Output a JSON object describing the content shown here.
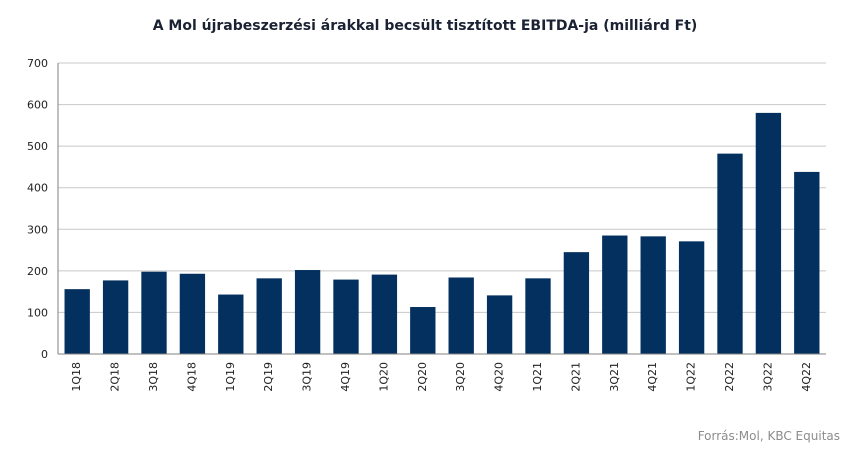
{
  "chart_data": {
    "type": "bar",
    "title": "A Mol újrabeszerzési árakkal becsült tisztított EBITDA-ja (milliárd Ft)",
    "categories": [
      "1Q18",
      "2Q18",
      "3Q18",
      "4Q18",
      "1Q19",
      "2Q19",
      "3Q19",
      "4Q19",
      "1Q20",
      "2Q20",
      "3Q20",
      "4Q20",
      "1Q21",
      "2Q21",
      "3Q21",
      "4Q21",
      "1Q22",
      "2Q22",
      "3Q22",
      "4Q22"
    ],
    "values": [
      156,
      177,
      198,
      193,
      143,
      182,
      202,
      179,
      191,
      113,
      184,
      141,
      182,
      245,
      285,
      283,
      271,
      482,
      580,
      438
    ],
    "xlabel": "",
    "ylabel": "",
    "ylim": [
      0,
      700
    ],
    "yticks": [
      "0",
      "100",
      "200",
      "300",
      "400",
      "500",
      "600",
      "700"
    ],
    "bar_color": "#03305f",
    "grid": true,
    "legend": "none"
  },
  "source_note": "Forrás:Mol, KBC Equitas"
}
